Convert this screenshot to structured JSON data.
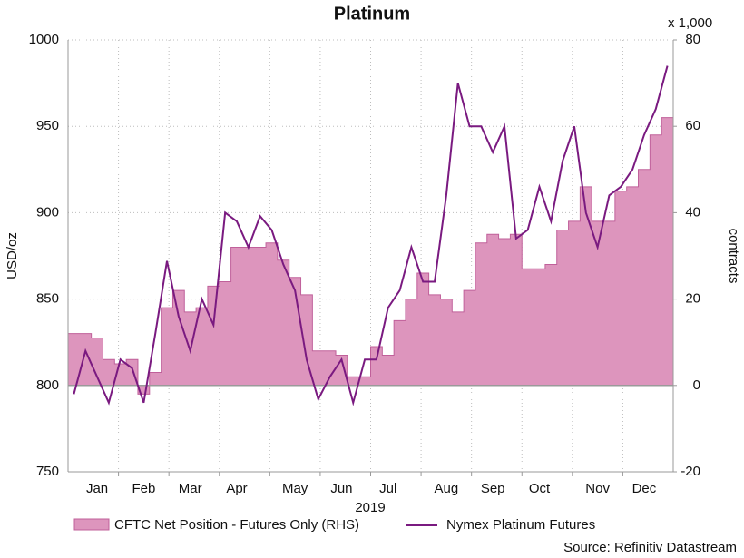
{
  "chart_data": {
    "type": "line",
    "title": "Platinum",
    "y_label": "USD/oz",
    "y2_label": "contracts",
    "y2_unit": "x 1,000",
    "x_label": "2019",
    "source": "Source: Refinitiv Datastream",
    "categories": [
      null,
      null,
      "Jan",
      null,
      null,
      null,
      "Feb",
      null,
      null,
      null,
      "Mar",
      null,
      null,
      null,
      "Apr",
      null,
      null,
      null,
      null,
      "May",
      null,
      null,
      null,
      "Jun",
      null,
      null,
      null,
      "Jul",
      null,
      null,
      null,
      null,
      "Aug",
      null,
      null,
      null,
      "Sep",
      null,
      null,
      null,
      "Oct",
      null,
      null,
      null,
      null,
      "Nov",
      null,
      null,
      null,
      "Dec",
      null,
      null
    ],
    "series": [
      {
        "name": "CFTC Net Position - Futures Only (RHS)",
        "type": "area",
        "axis": "y2",
        "color": "#dd95bd",
        "values": [
          12,
          12,
          11,
          6,
          5,
          6,
          -2,
          3,
          18,
          22,
          17,
          18,
          23,
          24,
          32,
          32,
          32,
          33,
          29,
          25,
          21,
          8,
          8,
          7,
          2,
          2,
          9,
          7,
          15,
          20,
          26,
          21,
          20,
          17,
          22,
          33,
          35,
          34,
          35,
          27,
          27,
          28,
          36,
          38,
          46,
          38,
          38,
          45,
          46,
          50,
          58,
          62
        ]
      },
      {
        "name": "Nymex Platinum Futures",
        "type": "line",
        "color": "#7a1a80",
        "values": [
          795,
          820,
          805,
          790,
          815,
          810,
          790,
          830,
          872,
          840,
          820,
          850,
          835,
          900,
          895,
          880,
          898,
          890,
          870,
          855,
          815,
          792,
          805,
          815,
          790,
          815,
          815,
          845,
          855,
          880,
          860,
          860,
          910,
          975,
          950,
          950,
          935,
          950,
          885,
          890,
          915,
          895,
          930,
          950,
          900,
          880,
          910,
          915,
          925,
          945,
          960,
          985
        ]
      }
    ],
    "ylim": [
      750,
      1000
    ],
    "yticks": [
      750,
      800,
      850,
      900,
      950,
      1000
    ],
    "y2lim": [
      -20,
      80
    ],
    "y2ticks": [
      -20,
      0,
      20,
      40,
      60,
      80
    ],
    "grid": true
  }
}
